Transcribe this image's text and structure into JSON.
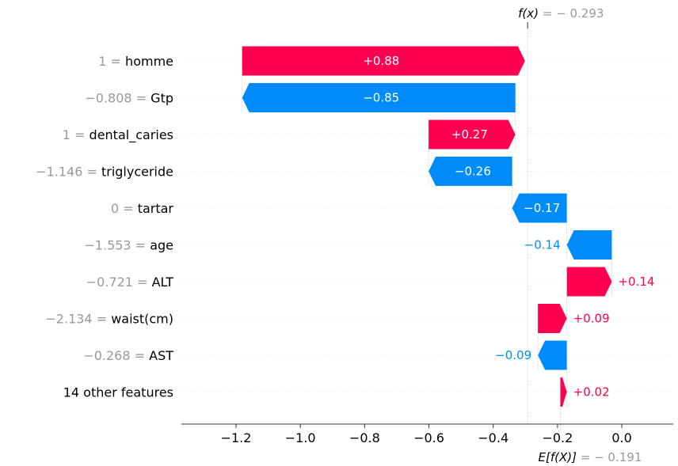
{
  "chart_data": {
    "type": "waterfall",
    "title": "",
    "xlabel": "",
    "ylabel": "",
    "fx": {
      "label_prefix": "f(x)",
      "value_text": "− 0.293",
      "value": -0.293
    },
    "base": {
      "label_prefix": "E[f(X)]",
      "value_text": "− 0.191",
      "value": -0.191
    },
    "xlim": [
      -1.37,
      0.16
    ],
    "xticks": [
      {
        "value": -1.2,
        "label": "−1.2"
      },
      {
        "value": -1.0,
        "label": "−1.0"
      },
      {
        "value": -0.8,
        "label": "−0.8"
      },
      {
        "value": -0.6,
        "label": "−0.6"
      },
      {
        "value": -0.4,
        "label": "−0.4"
      },
      {
        "value": -0.2,
        "label": "−0.2"
      },
      {
        "value": 0.0,
        "label": "0.0"
      }
    ],
    "rows": [
      {
        "feature_value": "1",
        "feature": "homme",
        "shap": 0.88,
        "label": "+0.88"
      },
      {
        "feature_value": "−0.808",
        "feature": "Gtp",
        "shap": -0.85,
        "label": "−0.85"
      },
      {
        "feature_value": "1",
        "feature": "dental_caries",
        "shap": 0.27,
        "label": "+0.27"
      },
      {
        "feature_value": "−1.146",
        "feature": "triglyceride",
        "shap": -0.26,
        "label": "−0.26"
      },
      {
        "feature_value": "0",
        "feature": "tartar",
        "shap": -0.17,
        "label": "−0.17"
      },
      {
        "feature_value": "−1.553",
        "feature": "age",
        "shap": -0.14,
        "label": "−0.14"
      },
      {
        "feature_value": "−0.721",
        "feature": "ALT",
        "shap": 0.14,
        "label": "+0.14"
      },
      {
        "feature_value": "−2.134",
        "feature": "waist(cm)",
        "shap": 0.09,
        "label": "+0.09"
      },
      {
        "feature_value": "−0.268",
        "feature": "AST",
        "shap": -0.09,
        "label": "−0.09"
      },
      {
        "feature_value": "",
        "feature": "14 other features",
        "shap": 0.02,
        "label": "+0.02"
      }
    ],
    "colors": {
      "positive": "#ff0051",
      "negative": "#008bfb",
      "muted": "#999999",
      "text": "#000000"
    }
  }
}
